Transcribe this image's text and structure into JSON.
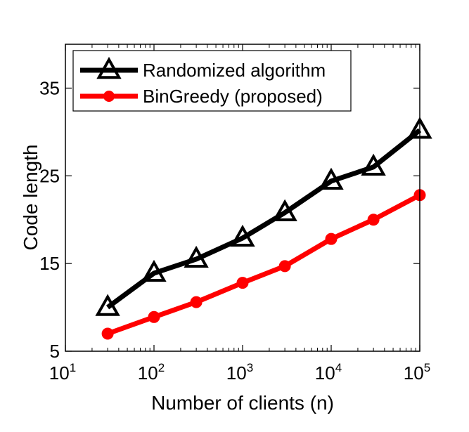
{
  "chart_data": {
    "type": "line",
    "xlabel": "Number of clients (n)",
    "ylabel": "Code length",
    "xscale": "log",
    "xlim": [
      10,
      100000
    ],
    "ylim": [
      5,
      40
    ],
    "x_ticks": [
      {
        "value": 10,
        "base": "10",
        "exp": "1"
      },
      {
        "value": 100,
        "base": "10",
        "exp": "2"
      },
      {
        "value": 1000,
        "base": "10",
        "exp": "3"
      },
      {
        "value": 10000,
        "base": "10",
        "exp": "4"
      },
      {
        "value": 100000,
        "base": "10",
        "exp": "5"
      }
    ],
    "y_ticks": [
      5,
      15,
      25,
      35
    ],
    "grid": false,
    "legend_position": "top-left",
    "series": [
      {
        "name": "Randomized algorithm",
        "color": "#000000",
        "marker": "triangle-open",
        "x": [
          30,
          100,
          300,
          1000,
          3000,
          10000,
          30000,
          100000
        ],
        "y": [
          10.0,
          13.9,
          15.5,
          17.9,
          20.8,
          24.4,
          26.0,
          30.2
        ]
      },
      {
        "name": "BinGreedy (proposed)",
        "color": "#ff0000",
        "marker": "circle-filled",
        "x": [
          30,
          100,
          300,
          1000,
          3000,
          10000,
          30000,
          100000
        ],
        "y": [
          7.0,
          8.9,
          10.6,
          12.8,
          14.7,
          17.8,
          20.0,
          22.8
        ]
      }
    ]
  }
}
